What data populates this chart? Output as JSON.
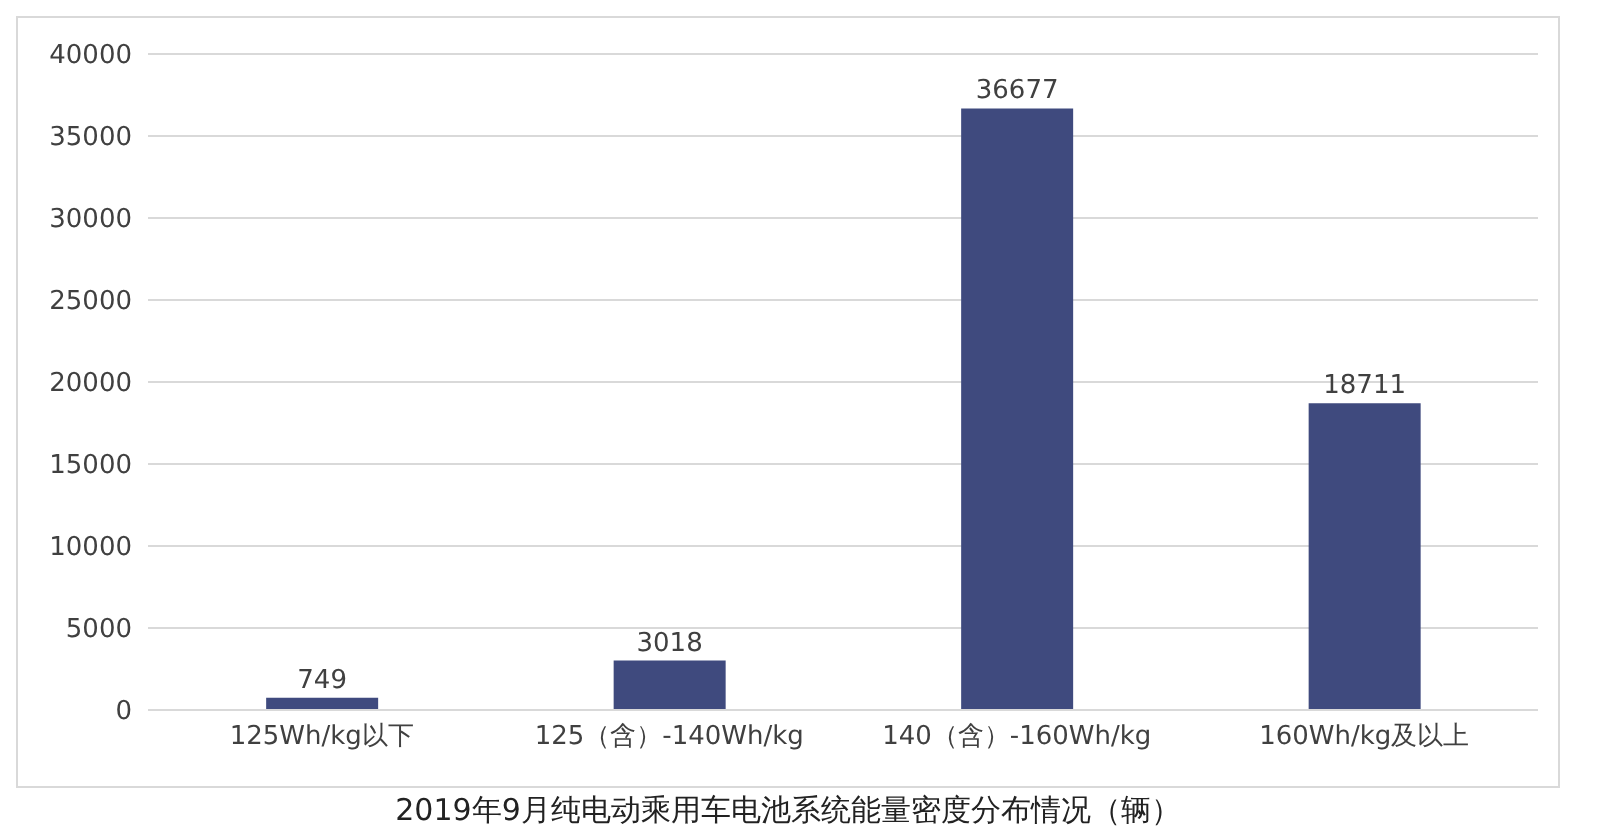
{
  "chart_data": {
    "type": "bar",
    "title": "2019年9月纯电动乘用车电池系统能量密度分布情况（辆）",
    "categories": [
      "125Wh/kg以下",
      "125（含）-140Wh/kg",
      "140（含）-160Wh/kg",
      "160Wh/kg及以上"
    ],
    "values": [
      749,
      3018,
      36677,
      18711
    ],
    "color": "#3f4a7e",
    "ylim": [
      0,
      40000
    ],
    "yticks": [
      0,
      5000,
      10000,
      15000,
      20000,
      25000,
      30000,
      35000,
      40000
    ],
    "grid": "y",
    "data_labels": true
  }
}
